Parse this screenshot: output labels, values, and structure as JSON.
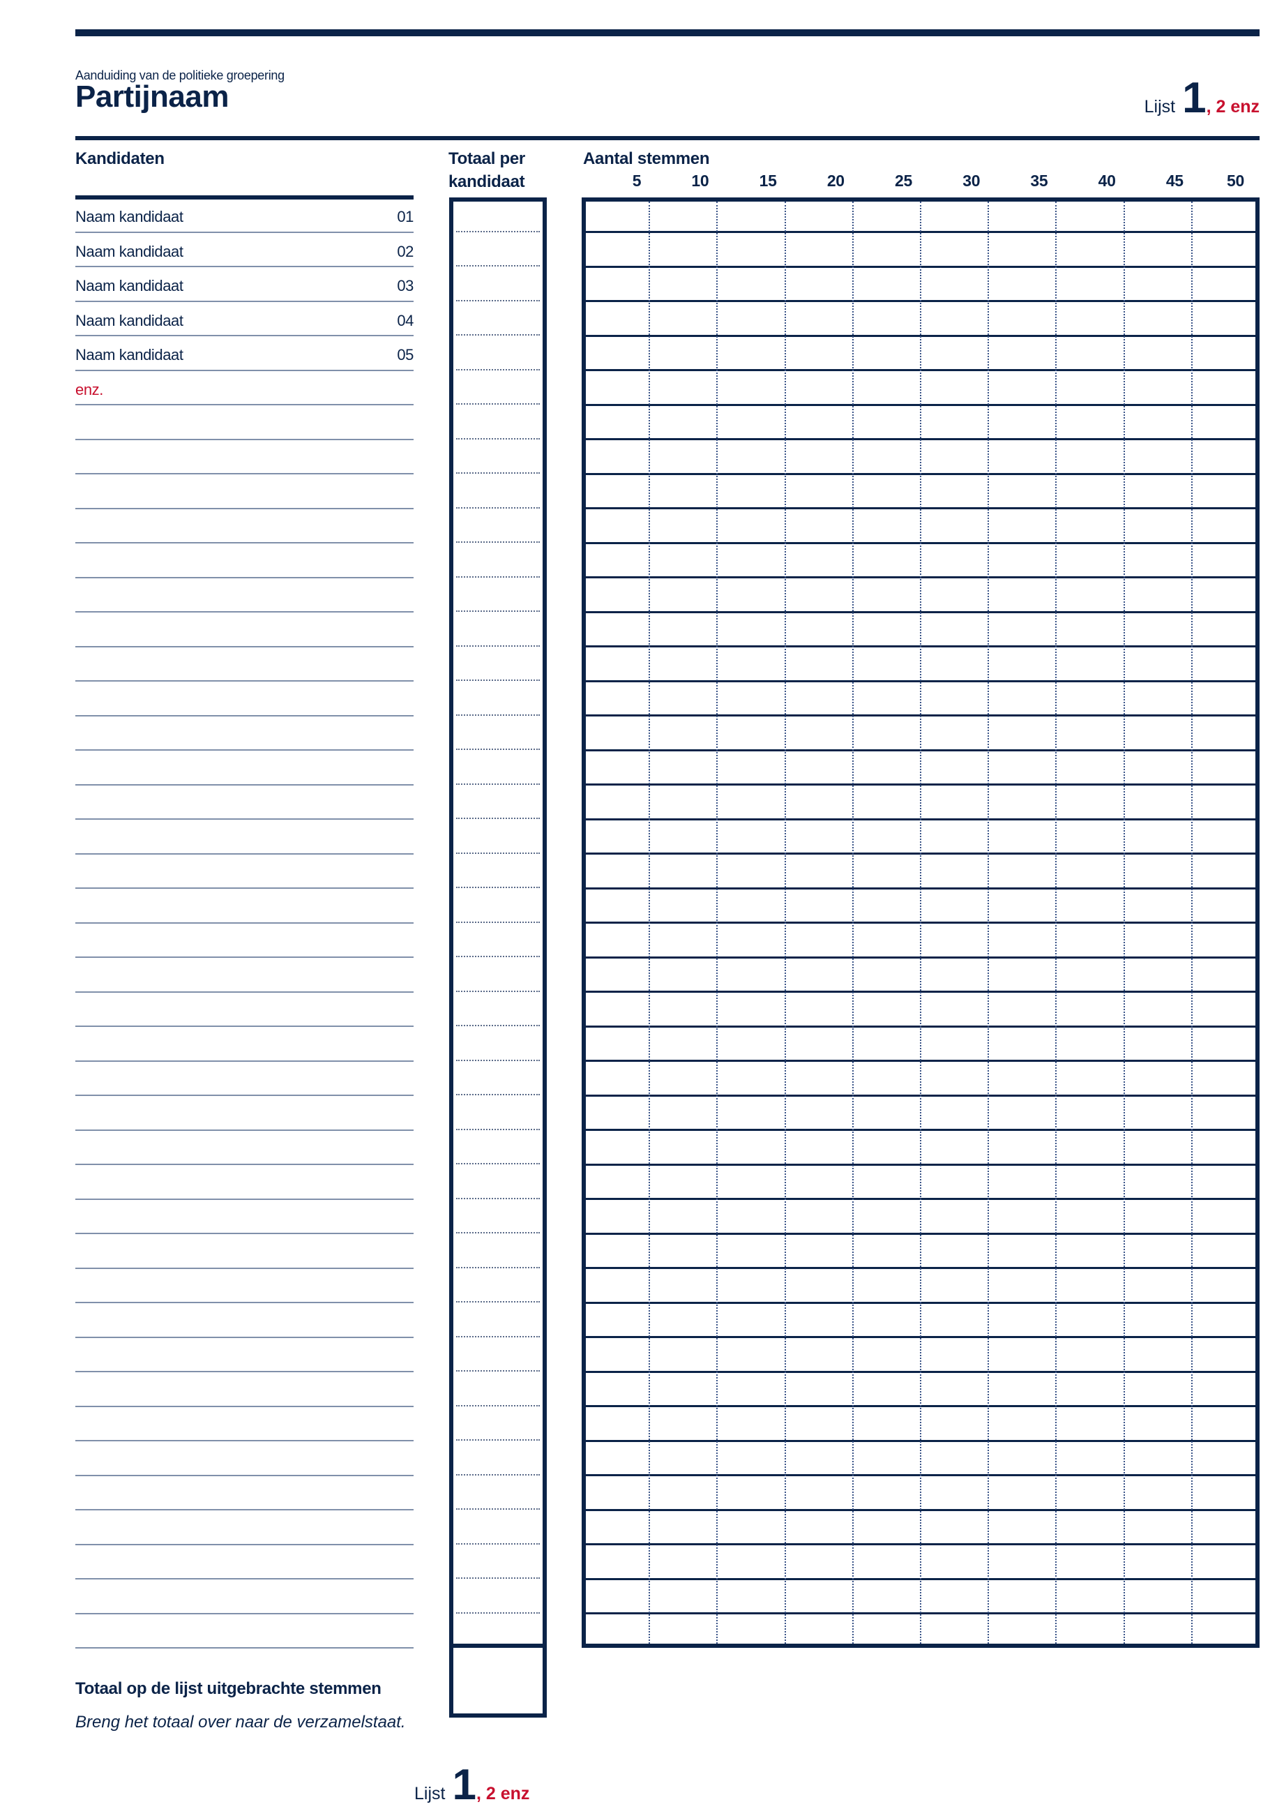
{
  "header": {
    "subtitle": "Aanduiding van de politieke groepering",
    "party_name": "Partijnaam",
    "list_word": "Lijst",
    "list_number": "1",
    "list_suffix": ", 2 enz"
  },
  "columns": {
    "candidates": "Kandidaten",
    "total_line1": "Totaal per",
    "total_line2": "kandidaat",
    "votes": "Aantal stemmen",
    "vote_ticks": [
      "5",
      "10",
      "15",
      "20",
      "25",
      "30",
      "35",
      "40",
      "45",
      "50"
    ]
  },
  "candidates": [
    {
      "name": "Naam kandidaat",
      "number": "01"
    },
    {
      "name": "Naam kandidaat",
      "number": "02"
    },
    {
      "name": "Naam kandidaat",
      "number": "03"
    },
    {
      "name": "Naam kandidaat",
      "number": "04"
    },
    {
      "name": "Naam kandidaat",
      "number": "05"
    }
  ],
  "etc_label": "enz.",
  "footer": {
    "total_label": "Totaal op de lijst uitgebrachte stemmen",
    "instruction": "Breng het totaal over naar de verzamelstaat."
  },
  "colors": {
    "navy": "#0b2348",
    "red": "#c8102e"
  }
}
